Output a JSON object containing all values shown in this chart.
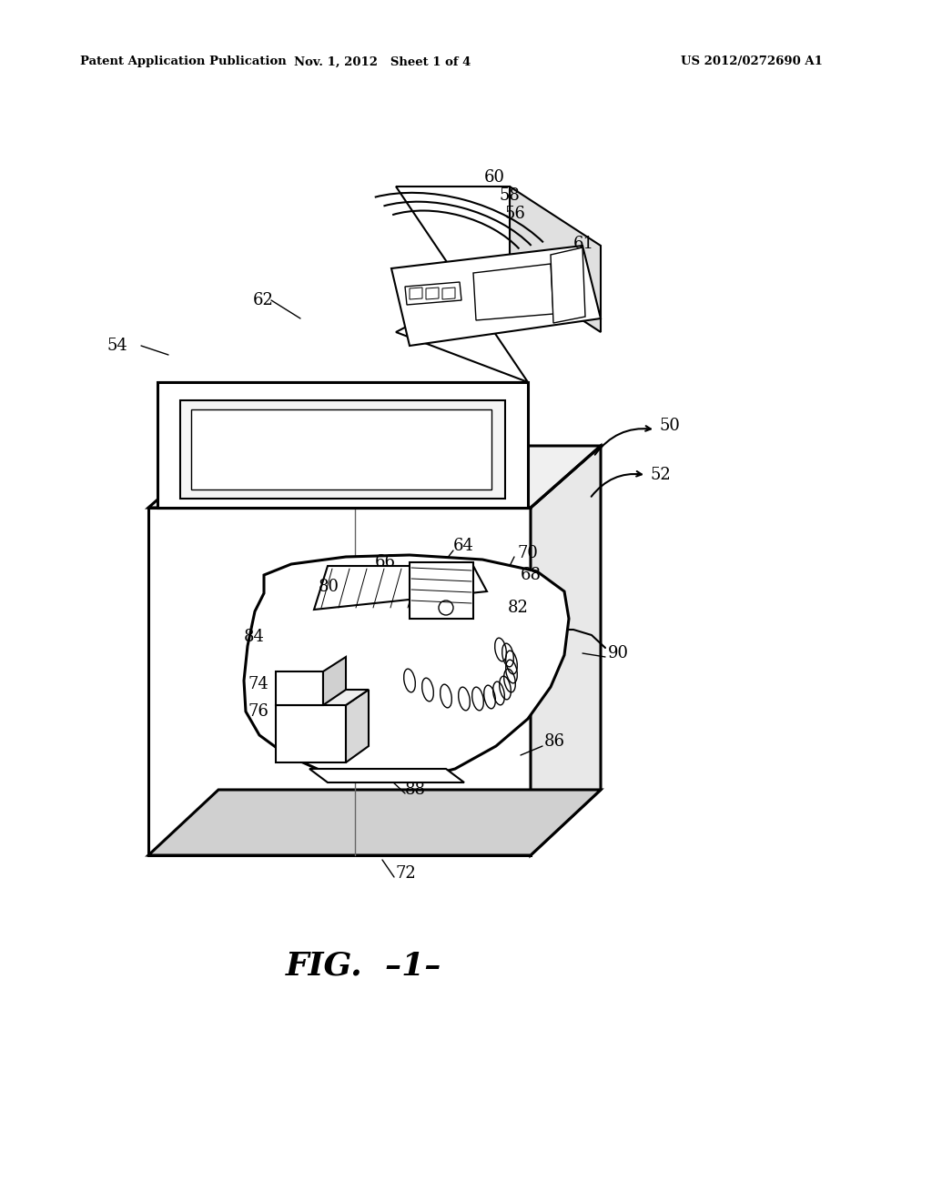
{
  "bg_color": "#ffffff",
  "header_left": "Patent Application Publication",
  "header_mid": "Nov. 1, 2012   Sheet 1 of 4",
  "header_right": "US 2012/0272690 A1",
  "fig_label": "FIG.  –1–",
  "lw_thick": 2.2,
  "lw_med": 1.5,
  "lw_thin": 1.0,
  "lw_hair": 0.7,
  "label_fs": 13,
  "header_fs": 9.5
}
